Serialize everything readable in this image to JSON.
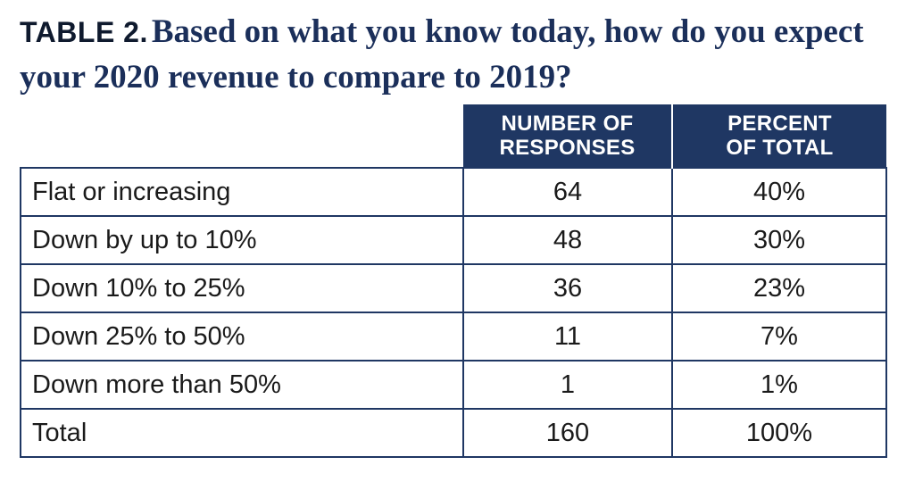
{
  "title": {
    "label": "TABLE 2.",
    "question": "Based on what you know today, how do you expect your 2020 revenue to compare to 2019?"
  },
  "table": {
    "headers": [
      "",
      "NUMBER OF\nRESPONSES",
      "PERCENT\nOF TOTAL"
    ],
    "rows": [
      [
        "Flat or increasing",
        "64",
        "40%"
      ],
      [
        "Down by up to 10%",
        "48",
        "30%"
      ],
      [
        "Down 10% to 25%",
        "36",
        "23%"
      ],
      [
        "Down 25% to 50%",
        "11",
        "7%"
      ],
      [
        "Down more than 50%",
        "1",
        "1%"
      ],
      [
        "Total",
        "160",
        "100%"
      ]
    ]
  },
  "colors": {
    "header_bg": "#1f3763",
    "title": "#1b2f5a",
    "border": "#1f3763"
  }
}
